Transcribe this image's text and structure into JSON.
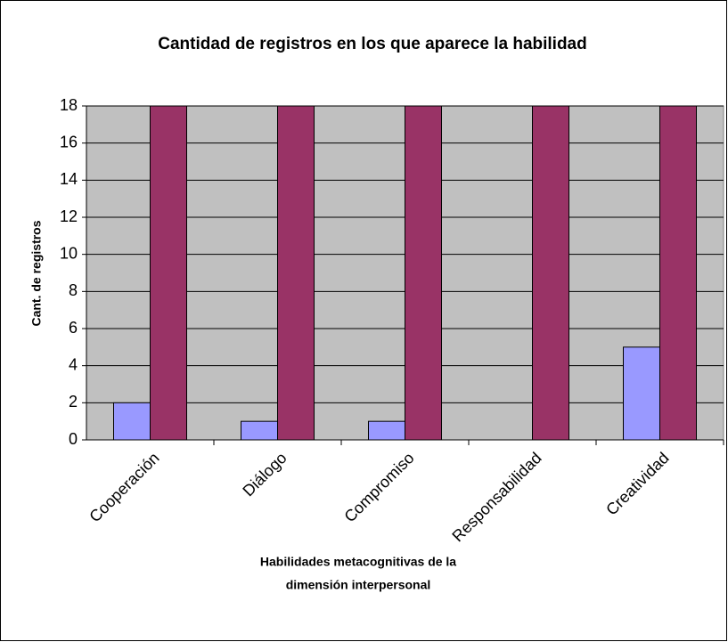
{
  "chart_data": {
    "type": "bar",
    "title": "Cantidad de registros en los que aparece la habilidad",
    "ylabel": "Cant. de registros",
    "xlabel": [
      "Habilidades metacognitivas de la",
      "dimensión interpersonal"
    ],
    "categories": [
      "Cooperación",
      "Diálogo",
      "Compromiso",
      "Responsabilidad",
      "Creatividad"
    ],
    "series": [
      {
        "color": "#9999ff",
        "values": [
          2,
          1,
          1,
          0,
          5
        ]
      },
      {
        "color": "#993366",
        "values": [
          18,
          18,
          18,
          18,
          18
        ]
      }
    ],
    "ylim": [
      0,
      18
    ],
    "yticks": [
      0,
      2,
      4,
      6,
      8,
      10,
      12,
      14,
      16,
      18
    ],
    "grid": true,
    "plot_background": "#c0c0c0"
  }
}
